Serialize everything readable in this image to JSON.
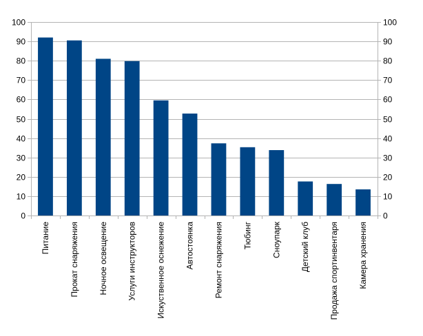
{
  "chart_data": {
    "type": "bar",
    "title": "",
    "xlabel": "",
    "ylabel": "",
    "ylim": [
      0,
      100
    ],
    "yticks": [
      0,
      10,
      20,
      30,
      40,
      50,
      60,
      70,
      80,
      90,
      100
    ],
    "secondary_y_axis": true,
    "grid": "horizontal",
    "legend": "none",
    "bar_color": "#004586",
    "categories": [
      "Питание",
      "Прокат снаряжения",
      "Ночное освещение",
      "Услуги инструкторов",
      "Искуственное оснежение",
      "Автостоянка",
      "Ремонт снаряжения",
      "Тюбинг",
      "Сноупарк",
      "Детский клуб",
      "Продажа спортинвентаря",
      "Камера хранения"
    ],
    "values": [
      92,
      90.5,
      81,
      79.8,
      59.5,
      52.7,
      37.3,
      35.3,
      33.8,
      17.6,
      16.3,
      13.5
    ]
  }
}
